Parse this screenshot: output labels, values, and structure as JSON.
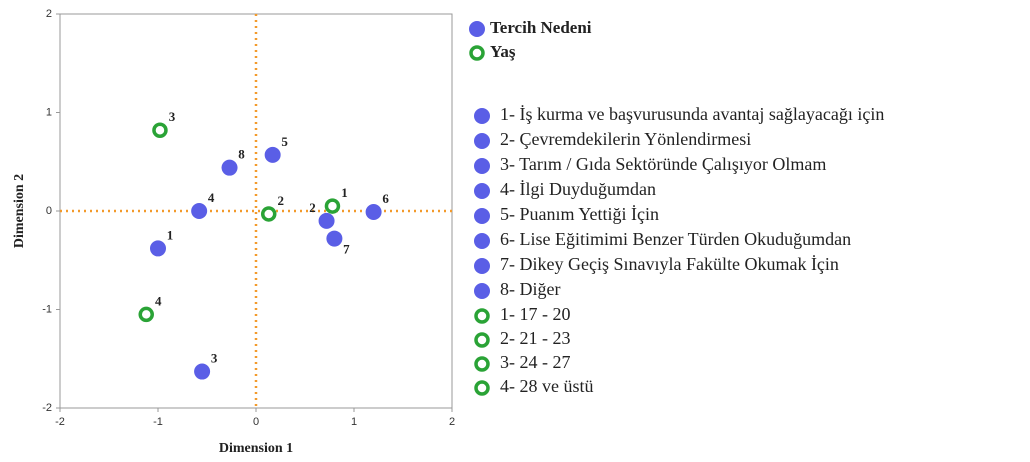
{
  "chart_data": {
    "type": "scatter",
    "xlabel": "Dimension 1",
    "ylabel": "Dimension 2",
    "xlim": [
      -2,
      2
    ],
    "ylim": [
      -2,
      2
    ],
    "xticks": [
      -2,
      -1,
      0,
      1,
      2
    ],
    "yticks": [
      -2,
      -1,
      0,
      1,
      2
    ],
    "reference_lines": {
      "x": 0,
      "y": 0,
      "color": "#f39a2b"
    },
    "series": [
      {
        "name": "Tercih Nedeni",
        "color": "#5a5ee6",
        "marker": "filled",
        "x": [
          -1.0,
          0.72,
          -0.55,
          -0.58,
          0.17,
          1.2,
          0.8,
          -0.27
        ],
        "values": [
          -0.38,
          -0.1,
          -1.63,
          0.0,
          0.57,
          -0.01,
          -0.28,
          0.44
        ],
        "point_labels": [
          "1",
          "2",
          "3",
          "4",
          "5",
          "6",
          "7",
          "8"
        ],
        "legend_items": [
          "1- İş kurma ve başvurusunda avantaj sağlayacağı için",
          "2- Çevremdekilerin Yönlendirmesi",
          "3- Tarım / Gıda Sektöründe Çalışıyor Olmam",
          "4- İlgi Duyduğumdan",
          "5- Puanım Yettiği İçin",
          "6- Lise Eğitimimi Benzer Türden Okuduğumdan",
          "7- Dikey Geçiş Sınavıyla Fakülte Okumak İçin",
          "8- Diğer"
        ]
      },
      {
        "name": "Yaş",
        "color": "#2aa336",
        "marker": "ring",
        "x": [
          0.78,
          0.13,
          -0.98,
          -1.12
        ],
        "values": [
          0.05,
          -0.03,
          0.82,
          -1.05
        ],
        "point_labels": [
          "1",
          "2",
          "3",
          "4"
        ],
        "legend_items": [
          "1- 17 - 20",
          "2- 21 - 23",
          "3- 24 - 27",
          "4- 28 ve üstü"
        ]
      }
    ]
  }
}
